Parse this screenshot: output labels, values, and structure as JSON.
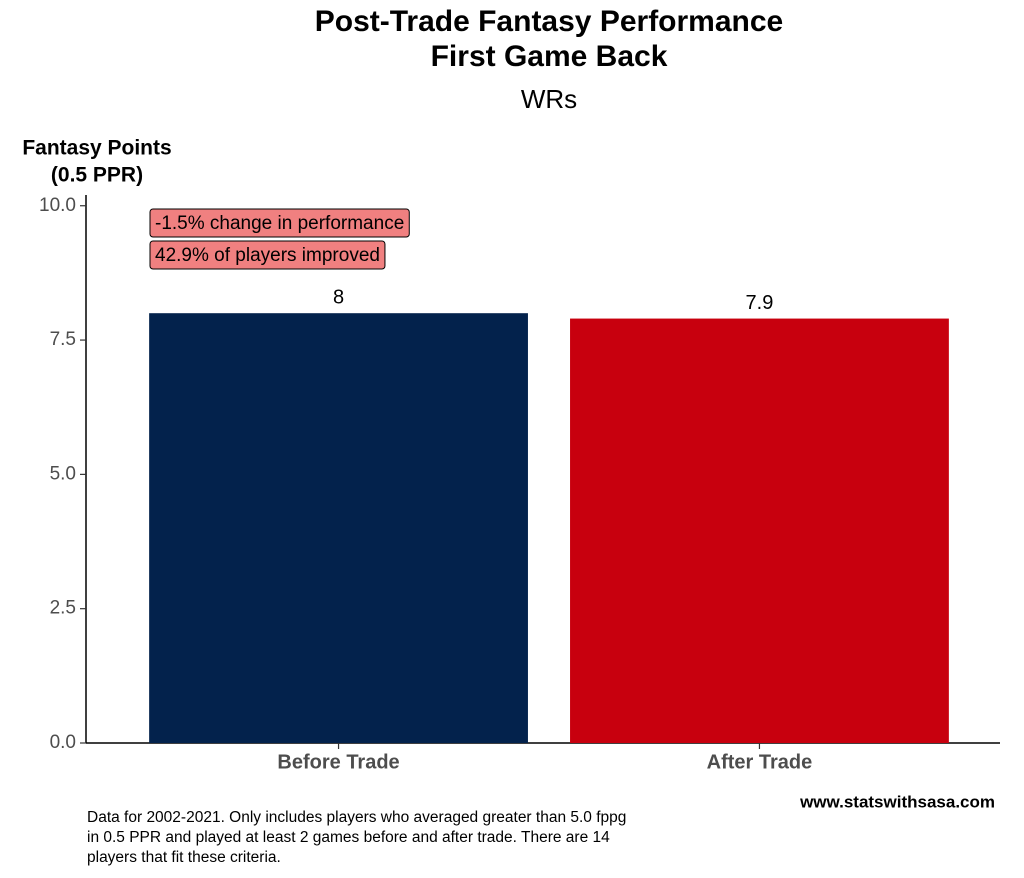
{
  "chart_data": {
    "type": "bar",
    "title": [
      "Post-Trade Fantasy Performance",
      "First Game Back"
    ],
    "subtitle": "WRs",
    "y_label": [
      "Fantasy Points",
      "(0.5 PPR)"
    ],
    "categories": [
      "Before Trade",
      "After Trade"
    ],
    "values": [
      8,
      7.9
    ],
    "colors": [
      "#03224c",
      "#c8000e"
    ],
    "ylim": [
      0,
      10.2
    ],
    "yticks": [
      {
        "value": 0,
        "label": "0.0"
      },
      {
        "value": 2.5,
        "label": "2.5"
      },
      {
        "value": 5,
        "label": "5.0"
      },
      {
        "value": 7.5,
        "label": "7.5"
      },
      {
        "value": 10,
        "label": "10.0"
      }
    ],
    "grid": false,
    "annotations": [
      "-1.5% change in performance",
      "42.9% of players improved"
    ],
    "annotation_color": "#f08080",
    "caption": [
      "Data for 2002-2021. Only includes players who averaged greater than 5.0 fppg",
      "in 0.5 PPR and played at least 2 games before and after trade. There are 14",
      "players that fit these criteria."
    ],
    "source": "www.statswithsasa.com"
  }
}
